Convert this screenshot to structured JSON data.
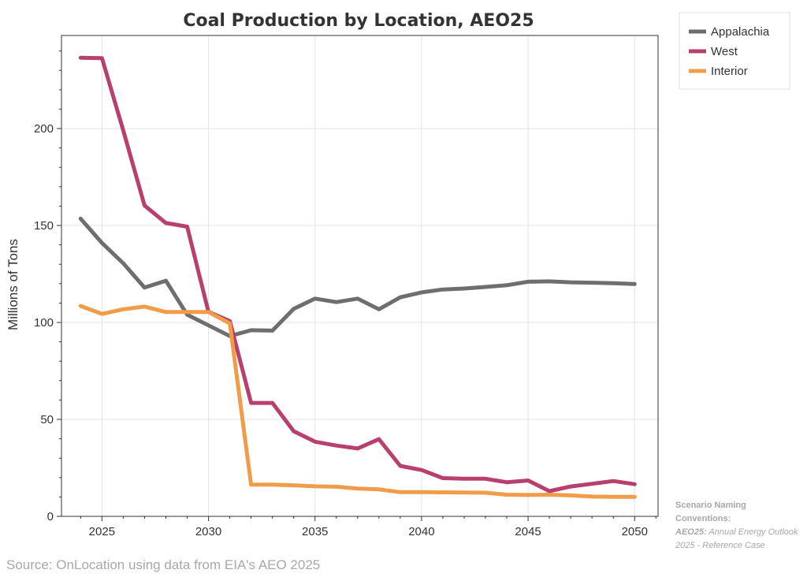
{
  "chart_data": {
    "type": "line",
    "title": "Coal Production by Location, AEO25",
    "xlabel": "",
    "ylabel": "Millions of Tons",
    "xlim": [
      2023.1,
      2051.1
    ],
    "ylim": [
      0,
      248
    ],
    "x_ticks": [
      2025,
      2030,
      2035,
      2040,
      2045,
      2050
    ],
    "y_ticks": [
      0,
      50,
      100,
      150,
      200
    ],
    "grid": true,
    "legend_position": "top-right",
    "x": [
      2024,
      2025,
      2026,
      2027,
      2028,
      2029,
      2030,
      2031,
      2032,
      2033,
      2034,
      2035,
      2036,
      2037,
      2038,
      2039,
      2040,
      2041,
      2042,
      2043,
      2044,
      2045,
      2046,
      2047,
      2048,
      2049,
      2050
    ],
    "series": [
      {
        "name": "Appalachia",
        "color": "#6e6e6e",
        "values": [
          153.5,
          141,
          130.5,
          118,
          121.5,
          104,
          98.5,
          93,
          96,
          95.8,
          107,
          112.3,
          110.5,
          112.3,
          106.8,
          113,
          115.5,
          117,
          117.5,
          118.3,
          119.2,
          121,
          121.2,
          120.7,
          120.5,
          120.2,
          119.8
        ]
      },
      {
        "name": "West",
        "color": "#b8406f",
        "values": [
          236.5,
          236.3,
          199,
          160.3,
          151.3,
          149.4,
          105.5,
          100.7,
          58.5,
          58.5,
          43.9,
          38.5,
          36.5,
          35,
          39.8,
          26,
          23.9,
          19.7,
          19.4,
          19.4,
          17.6,
          18.5,
          13,
          15.4,
          16.8,
          18.2,
          16.6
        ]
      },
      {
        "name": "Interior",
        "color": "#f09c48",
        "values": [
          108.5,
          104.4,
          106.8,
          108.2,
          105.4,
          105.4,
          105.4,
          99.5,
          16.4,
          16.4,
          16,
          15.5,
          15.3,
          14.3,
          13.9,
          12.5,
          12.5,
          12.4,
          12.3,
          12.2,
          11.2,
          11,
          11.2,
          10.8,
          10.2,
          10.1,
          10.1
        ]
      }
    ]
  },
  "footer": {
    "source": "Source: OnLocation using data from EIA's AEO 2025"
  },
  "note": {
    "heading": "Scenario Naming Conventions:",
    "term": "AEO25:",
    "definition": " Annual Energy Outlook 2025 - Reference Case"
  }
}
